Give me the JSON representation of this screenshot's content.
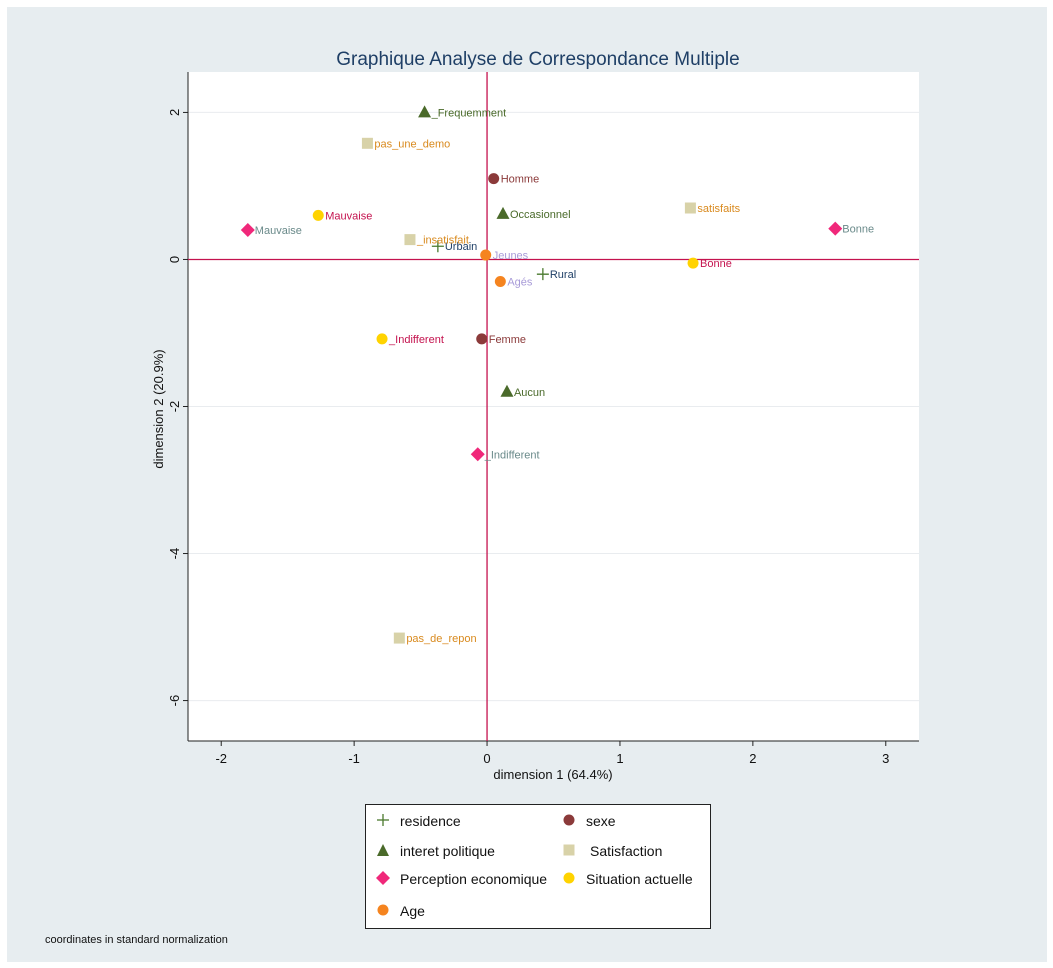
{
  "chart_data": {
    "type": "scatter",
    "title": "Graphique Analyse de Correspondance Multiple",
    "xlabel": "dimension 1 (64.4%)",
    "ylabel": "dimension 2 (20.9%)",
    "xlim": [
      -2.25,
      3.25
    ],
    "ylim": [
      -6.55,
      2.55
    ],
    "xticks": [
      -2,
      -1,
      0,
      1,
      2,
      3
    ],
    "yticks": [
      -6,
      -4,
      -2,
      0,
      2
    ],
    "reference_lines": {
      "x": 0,
      "y": 0,
      "color": "#c4124e"
    },
    "grid": "horizontal",
    "legend_position": "bottom",
    "footnote": "coordinates in standard normalization",
    "series": [
      {
        "name": "residence",
        "marker": "plus",
        "color": "#4a7a2e",
        "label_color": "#1f3f66",
        "points": [
          {
            "label": "Urbain",
            "x": -0.37,
            "y": 0.18
          },
          {
            "label": "Rural",
            "x": 0.42,
            "y": -0.2
          }
        ]
      },
      {
        "name": "sexe",
        "marker": "circle",
        "color": "#8b3a3a",
        "label_color": "#8b3a3a",
        "points": [
          {
            "label": "Homme",
            "x": 0.05,
            "y": 1.1
          },
          {
            "label": "Femme",
            "x": -0.04,
            "y": -1.08
          }
        ]
      },
      {
        "name": "interet politique",
        "marker": "triangle",
        "color": "#4a6a2a",
        "label_color": "#4a6a2a",
        "points": [
          {
            "label": "_Frequemment",
            "x": -0.47,
            "y": 2.0
          },
          {
            "label": "Occasionnel",
            "x": 0.12,
            "y": 0.62
          },
          {
            "label": "Aucun",
            "x": 0.15,
            "y": -1.8
          }
        ]
      },
      {
        "name": "Satisfaction",
        "marker": "square",
        "color": "#d8d2a8",
        "label_color": "#d98a1e",
        "points": [
          {
            "label": "pas_une_demo",
            "x": -0.9,
            "y": 1.58
          },
          {
            "label": "_insatisfait",
            "x": -0.58,
            "y": 0.27
          },
          {
            "label": "satisfaits",
            "x": 1.53,
            "y": 0.7
          },
          {
            "label": "pas_de_repon",
            "x": -0.66,
            "y": -5.15
          }
        ]
      },
      {
        "name": "Perception economique",
        "marker": "diamond",
        "color": "#f0287a",
        "label_color": "#6a8a8a",
        "points": [
          {
            "label": "Mauvaise",
            "x": -1.8,
            "y": 0.4
          },
          {
            "label": "Bonne",
            "x": 2.62,
            "y": 0.42
          },
          {
            "label": "_Indifferent",
            "x": -0.07,
            "y": -2.65
          }
        ]
      },
      {
        "name": "Situation actuelle",
        "marker": "circle",
        "color": "#ffd300",
        "label_color": "#c4124e",
        "points": [
          {
            "label": "Mauvaise",
            "x": -1.27,
            "y": 0.6
          },
          {
            "label": "Bonne",
            "x": 1.55,
            "y": -0.05
          },
          {
            "label": "_Indifferent",
            "x": -0.79,
            "y": -1.08
          }
        ]
      },
      {
        "name": "Age",
        "marker": "circle",
        "color": "#f5841f",
        "label_color": "#a89bd8",
        "points": [
          {
            "label": "Jeunes",
            "x": -0.01,
            "y": 0.06
          },
          {
            "label": "Agés",
            "x": 0.1,
            "y": -0.3
          }
        ]
      }
    ]
  }
}
